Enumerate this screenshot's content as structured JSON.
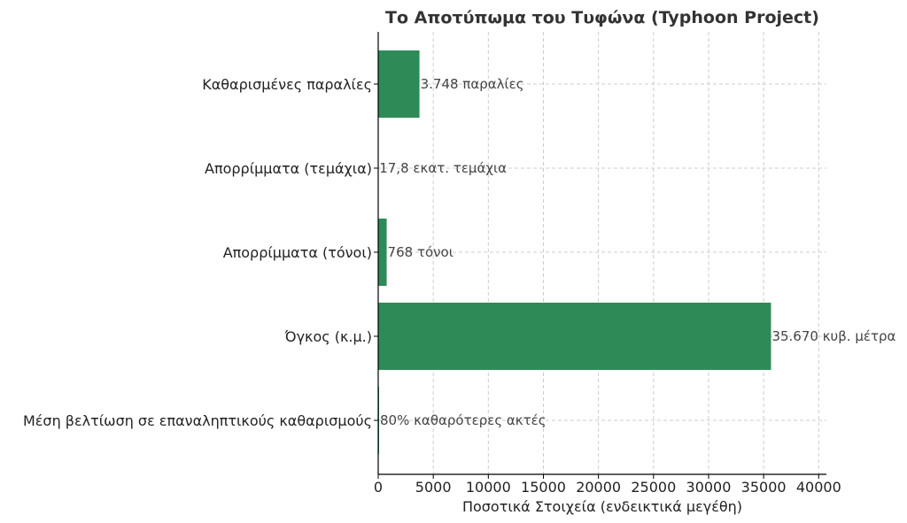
{
  "colors": {
    "bar": "#2e8b57",
    "grid": "#cccccc",
    "text": "#222222"
  },
  "chart_data": {
    "type": "bar",
    "orientation": "horizontal",
    "title": "Το Αποτύπωμα του Τυφώνα (Typhoon Project)",
    "xlabel": "Ποσοτικά Στοιχεία (ενδεικτικά μεγέθη)",
    "ylabel": "",
    "xlim": [
      0,
      40700
    ],
    "xticks": [
      0,
      5000,
      10000,
      15000,
      20000,
      25000,
      30000,
      35000,
      40000
    ],
    "grid": true,
    "categories": [
      "Καθαρισμένες παραλίες",
      "Απορρίμματα (τεμάχια)",
      "Απορρίμματα (τόνοι)",
      "Όγκος (κ.μ.)",
      "Μέση βελτίωση σε επαναληπτικούς καθαρισμούς"
    ],
    "values": [
      3748,
      17.8,
      768,
      35670,
      80
    ],
    "data_labels": [
      "3.748 παραλίες",
      "17,8 εκατ. τεμάχια",
      "768 τόνοι",
      "35.670 κυβ. μέτρα",
      "80% καθαρότερες ακτές"
    ]
  }
}
